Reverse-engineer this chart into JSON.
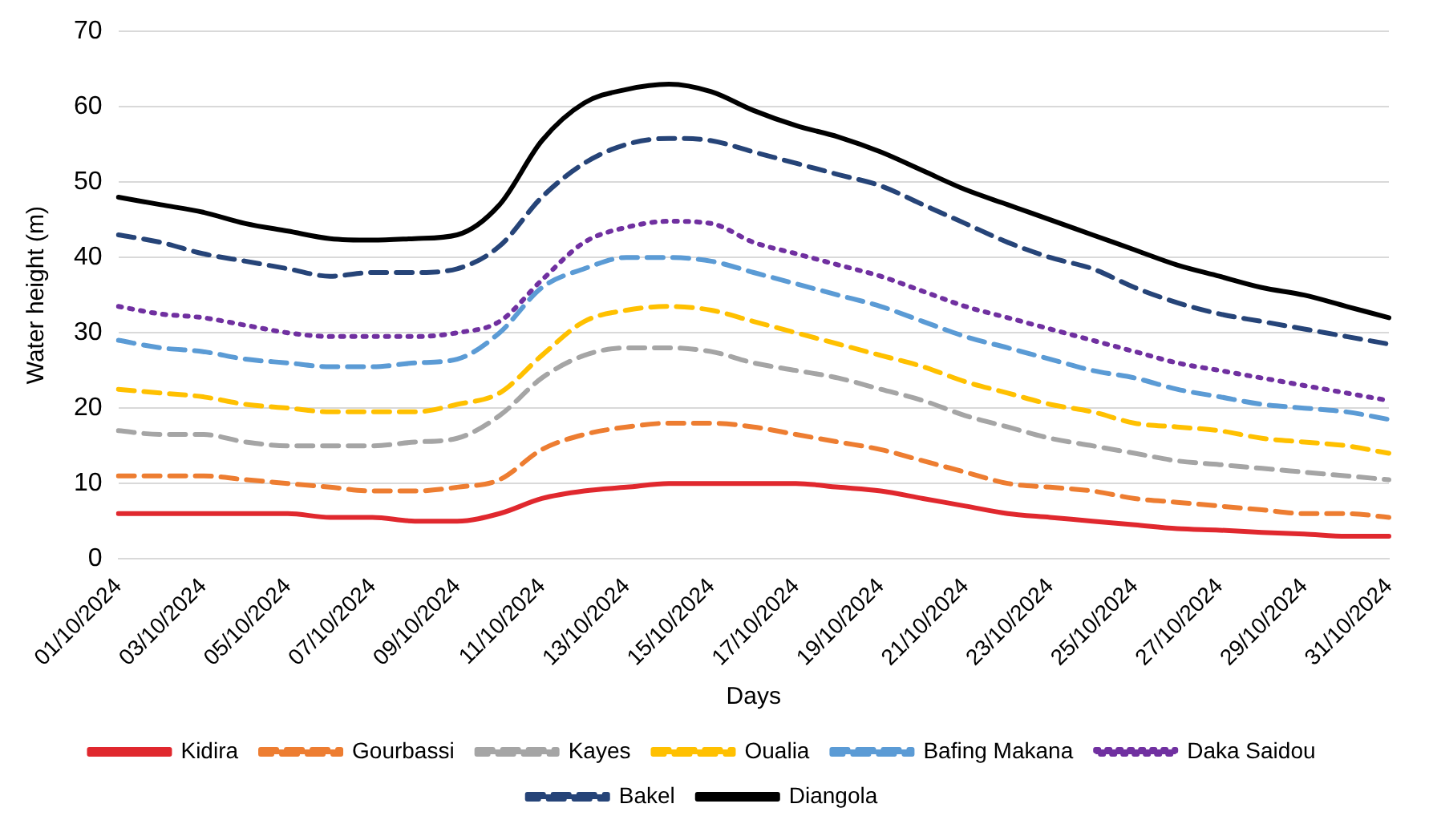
{
  "chart_data": {
    "type": "line",
    "xlabel": "Days",
    "ylabel": "Water height (m)",
    "categories": [
      "01/10/2024",
      null,
      "03/10/2024",
      null,
      "05/10/2024",
      null,
      "07/10/2024",
      null,
      "09/10/2024",
      null,
      "11/10/2024",
      null,
      "13/10/2024",
      null,
      "15/10/2024",
      null,
      "17/10/2024",
      null,
      "19/10/2024",
      null,
      "21/10/2024",
      null,
      "23/10/2024",
      null,
      "25/10/2024",
      null,
      "27/10/2024",
      null,
      "29/10/2024",
      null,
      "31/10/2024"
    ],
    "ylim": [
      0,
      70
    ],
    "yticks": [
      0,
      10,
      20,
      30,
      40,
      50,
      60,
      70
    ],
    "grid": "y",
    "legend": "bottom",
    "marker": "none",
    "series": [
      {
        "name": "Kidira",
        "color": "#e0282e",
        "line_style": "solid",
        "values": [
          6,
          6,
          6,
          6,
          6,
          5.5,
          5.5,
          5,
          5,
          6,
          8,
          9,
          9.5,
          10,
          10,
          10,
          10,
          9.5,
          9,
          8,
          7,
          6,
          5.5,
          5,
          4.5,
          4,
          3.8,
          3.5,
          3.3,
          3,
          3
        ]
      },
      {
        "name": "Gourbassi",
        "color": "#ed7d31",
        "line_style": "dashed",
        "values": [
          11,
          11,
          11,
          10.5,
          10,
          9.5,
          9,
          9,
          9.5,
          10.5,
          14.5,
          16.5,
          17.5,
          18,
          18,
          17.5,
          16.5,
          15.5,
          14.5,
          13,
          11.5,
          10,
          9.5,
          9,
          8,
          7.5,
          7,
          6.5,
          6,
          6,
          5.5
        ]
      },
      {
        "name": "Kayes",
        "color": "#a5a5a5",
        "line_style": "dashed",
        "values": [
          17,
          16.5,
          16.5,
          15.5,
          15,
          15,
          15,
          15.5,
          16,
          19,
          24,
          27,
          28,
          28,
          27.5,
          26,
          25,
          24,
          22.5,
          21,
          19,
          17.5,
          16,
          15,
          14,
          13,
          12.5,
          12,
          11.5,
          11,
          10.5
        ]
      },
      {
        "name": "Oualia",
        "color": "#ffc000",
        "line_style": "dashed",
        "values": [
          22.5,
          22,
          21.5,
          20.5,
          20,
          19.5,
          19.5,
          19.5,
          20.5,
          22,
          27,
          31.5,
          33,
          33.5,
          33,
          31.5,
          30,
          28.5,
          27,
          25.5,
          23.5,
          22,
          20.5,
          19.5,
          18,
          17.5,
          17,
          16,
          15.5,
          15,
          14
        ]
      },
      {
        "name": "Bafing Makana",
        "color": "#5b9bd5",
        "line_style": "dashed",
        "values": [
          29,
          28,
          27.5,
          26.5,
          26,
          25.5,
          25.5,
          26,
          26.5,
          30,
          36,
          38.5,
          40,
          40,
          39.5,
          38,
          36.5,
          35,
          33.5,
          31.5,
          29.5,
          28,
          26.5,
          25,
          24,
          22.5,
          21.5,
          20.5,
          20,
          19.5,
          18.5
        ]
      },
      {
        "name": "Daka Saidou",
        "color": "#7030a0",
        "line_style": "dotted",
        "values": [
          33.5,
          32.5,
          32,
          31,
          30,
          29.5,
          29.5,
          29.5,
          30,
          31.5,
          37,
          42,
          44,
          44.8,
          44.5,
          42,
          40.5,
          39,
          37.5,
          35.5,
          33.5,
          32,
          30.5,
          29,
          27.5,
          26,
          25,
          24,
          23,
          22,
          21
        ]
      },
      {
        "name": "Bakel",
        "color": "#264478",
        "line_style": "dashed",
        "values": [
          43,
          42,
          40.5,
          39.5,
          38.5,
          37.5,
          38,
          38,
          38.5,
          41.5,
          48,
          52.5,
          55,
          55.8,
          55.5,
          54,
          52.5,
          51,
          49.5,
          47,
          44.5,
          42,
          40,
          38.5,
          36,
          34,
          32.5,
          31.5,
          30.5,
          29.5,
          28.5
        ]
      },
      {
        "name": "Diangola",
        "color": "#000000",
        "line_style": "solid",
        "values": [
          48,
          47,
          46,
          44.5,
          43.5,
          42.5,
          42.3,
          42.5,
          43,
          47,
          55.5,
          60.5,
          62.3,
          63,
          62,
          59.5,
          57.5,
          56,
          54,
          51.5,
          49,
          47,
          45,
          43,
          41,
          39,
          37.5,
          36,
          35,
          33.5,
          32
        ]
      }
    ]
  }
}
